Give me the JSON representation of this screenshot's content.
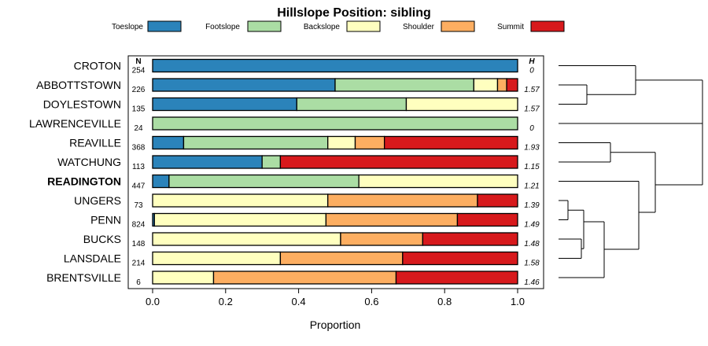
{
  "chart_data": {
    "type": "bar",
    "orientation": "horizontal",
    "stacked": true,
    "title": "Hillslope Position: sibling",
    "xlabel": "Proportion",
    "ylabel": "",
    "xlim": [
      0,
      1
    ],
    "x_ticks": [
      "0.0",
      "0.2",
      "0.4",
      "0.6",
      "0.8",
      "1.0"
    ],
    "x_tick_values": [
      0,
      0.2,
      0.4,
      0.6,
      0.8,
      1.0
    ],
    "legend_position": "top",
    "n_header": "N",
    "h_header": "H",
    "highlighted_category": "READINGTON",
    "categories": [
      "CROTON",
      "ABBOTTSTOWN",
      "DOYLESTOWN",
      "LAWRENCEVILLE",
      "REAVILLE",
      "WATCHUNG",
      "READINGTON",
      "UNGERS",
      "PENN",
      "BUCKS",
      "LANSDALE",
      "BRENTSVILLE"
    ],
    "n": [
      "254",
      "226",
      "135",
      "24",
      "368",
      "113",
      "447",
      "73",
      "824",
      "148",
      "214",
      "6"
    ],
    "h": [
      "0",
      "1.57",
      "1.57",
      "0",
      "1.93",
      "1.15",
      "1.21",
      "1.39",
      "1.49",
      "1.48",
      "1.58",
      "1.46"
    ],
    "series": [
      {
        "name": "Toeslope",
        "color": "#2b83ba",
        "values": [
          1.0,
          0.5,
          0.395,
          0.0,
          0.085,
          0.3,
          0.045,
          0.0,
          0.005,
          0.0,
          0.0,
          0.0
        ]
      },
      {
        "name": "Footslope",
        "color": "#abdda4",
        "values": [
          0.0,
          0.38,
          0.3,
          1.0,
          0.395,
          0.05,
          0.52,
          0.0,
          0.0,
          0.0,
          0.0,
          0.0
        ]
      },
      {
        "name": "Backslope",
        "color": "#ffffbf",
        "values": [
          0.0,
          0.065,
          0.305,
          0.0,
          0.075,
          0.0,
          0.435,
          0.48,
          0.47,
          0.515,
          0.35,
          0.167
        ]
      },
      {
        "name": "Shoulder",
        "color": "#fdae61",
        "values": [
          0.0,
          0.025,
          0.0,
          0.0,
          0.08,
          0.0,
          0.0,
          0.41,
          0.36,
          0.225,
          0.335,
          0.5
        ]
      },
      {
        "name": "Summit",
        "color": "#d7191c",
        "values": [
          0.0,
          0.03,
          0.0,
          0.0,
          0.365,
          0.65,
          0.0,
          0.11,
          0.165,
          0.26,
          0.315,
          0.333
        ]
      }
    ]
  }
}
